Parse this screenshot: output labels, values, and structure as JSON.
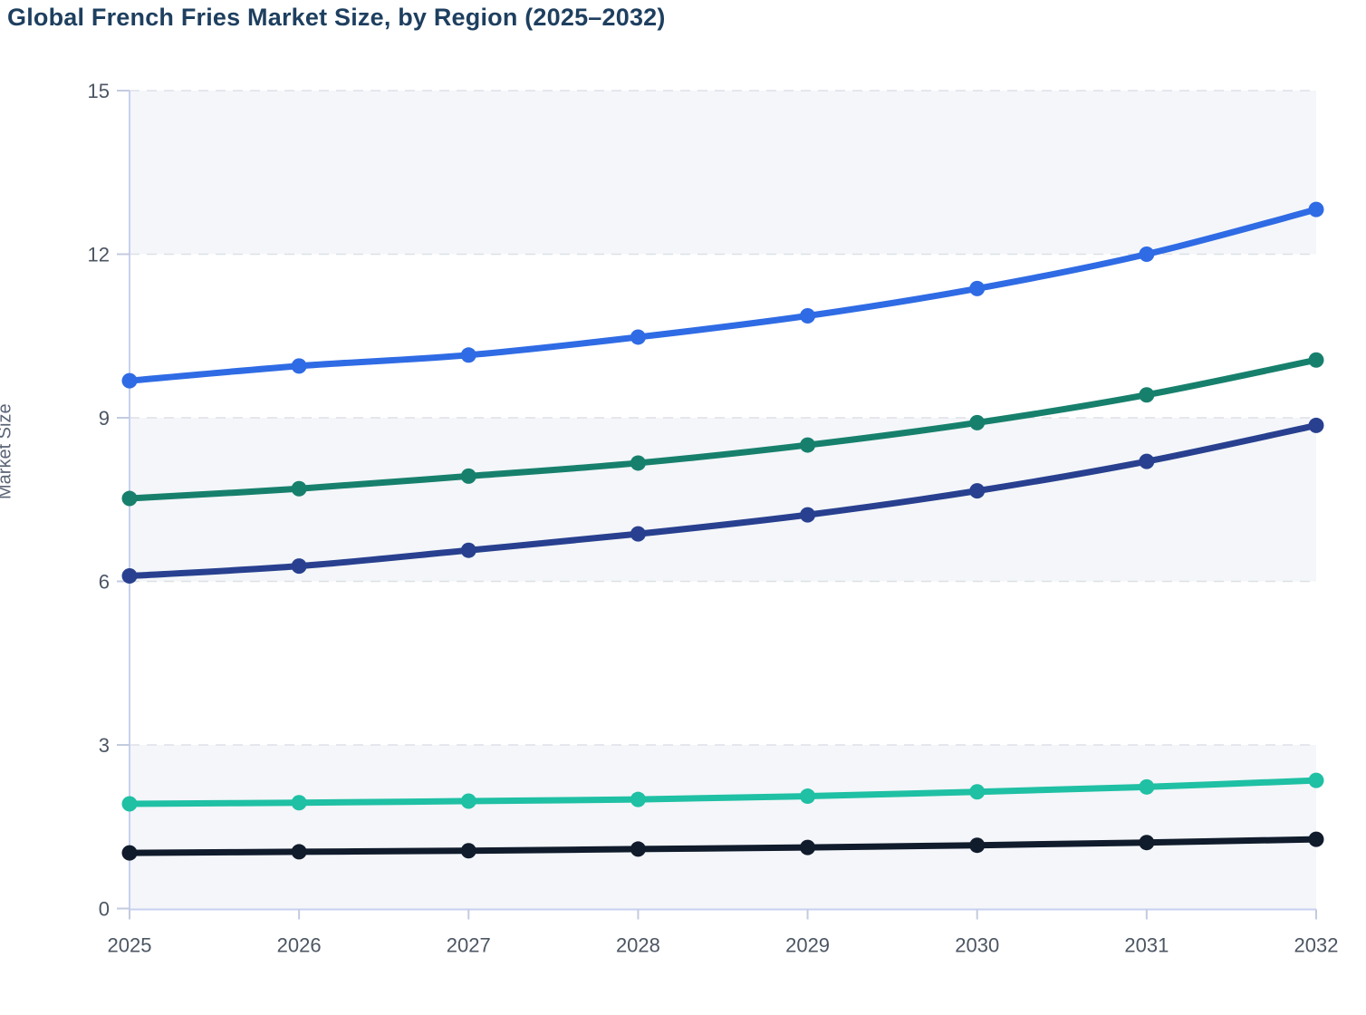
{
  "page": {
    "title": "Global French Fries Market Size, by Region (2025–2032)"
  },
  "chart_data": {
    "type": "line",
    "title": "Global French Fries Market Size, by Region (2025–2032)",
    "xlabel": "",
    "ylabel": "Market Size",
    "x": [
      2025,
      2026,
      2027,
      2028,
      2029,
      2030,
      2031,
      2032
    ],
    "ylim": [
      0,
      15
    ],
    "yticks": [
      0,
      3,
      6,
      9,
      12,
      15
    ],
    "grid": "horizontal-dashed",
    "legend": "none",
    "line_style": "smooth-with-point-markers",
    "series": [
      {
        "id": "series-blue",
        "color": "#2f6be4",
        "values": [
          9.68,
          9.95,
          10.15,
          10.48,
          10.87,
          11.37,
          12.0,
          12.82
        ]
      },
      {
        "id": "series-green",
        "color": "#17806d",
        "values": [
          7.52,
          7.7,
          7.93,
          8.17,
          8.5,
          8.91,
          9.42,
          10.06
        ]
      },
      {
        "id": "series-navy",
        "color": "#28408f",
        "values": [
          6.1,
          6.28,
          6.57,
          6.87,
          7.22,
          7.66,
          8.2,
          8.86
        ]
      },
      {
        "id": "series-teal",
        "color": "#1fc0a4",
        "values": [
          1.92,
          1.94,
          1.97,
          2.0,
          2.06,
          2.14,
          2.23,
          2.35
        ]
      },
      {
        "id": "series-black",
        "color": "#101b2c",
        "values": [
          1.02,
          1.04,
          1.06,
          1.09,
          1.12,
          1.16,
          1.21,
          1.27
        ]
      }
    ]
  },
  "style": {
    "title_color": "#1e3f5f",
    "band_fill": "#f4f6f9",
    "gridline_color": "#dde1e7",
    "axis_line_color": "#c7d1f0",
    "tick_mark_color": "#c3cbdf",
    "tick_label_color": "#4c5663",
    "axis_title_color": "#5a6476",
    "background": "#ffffff"
  }
}
